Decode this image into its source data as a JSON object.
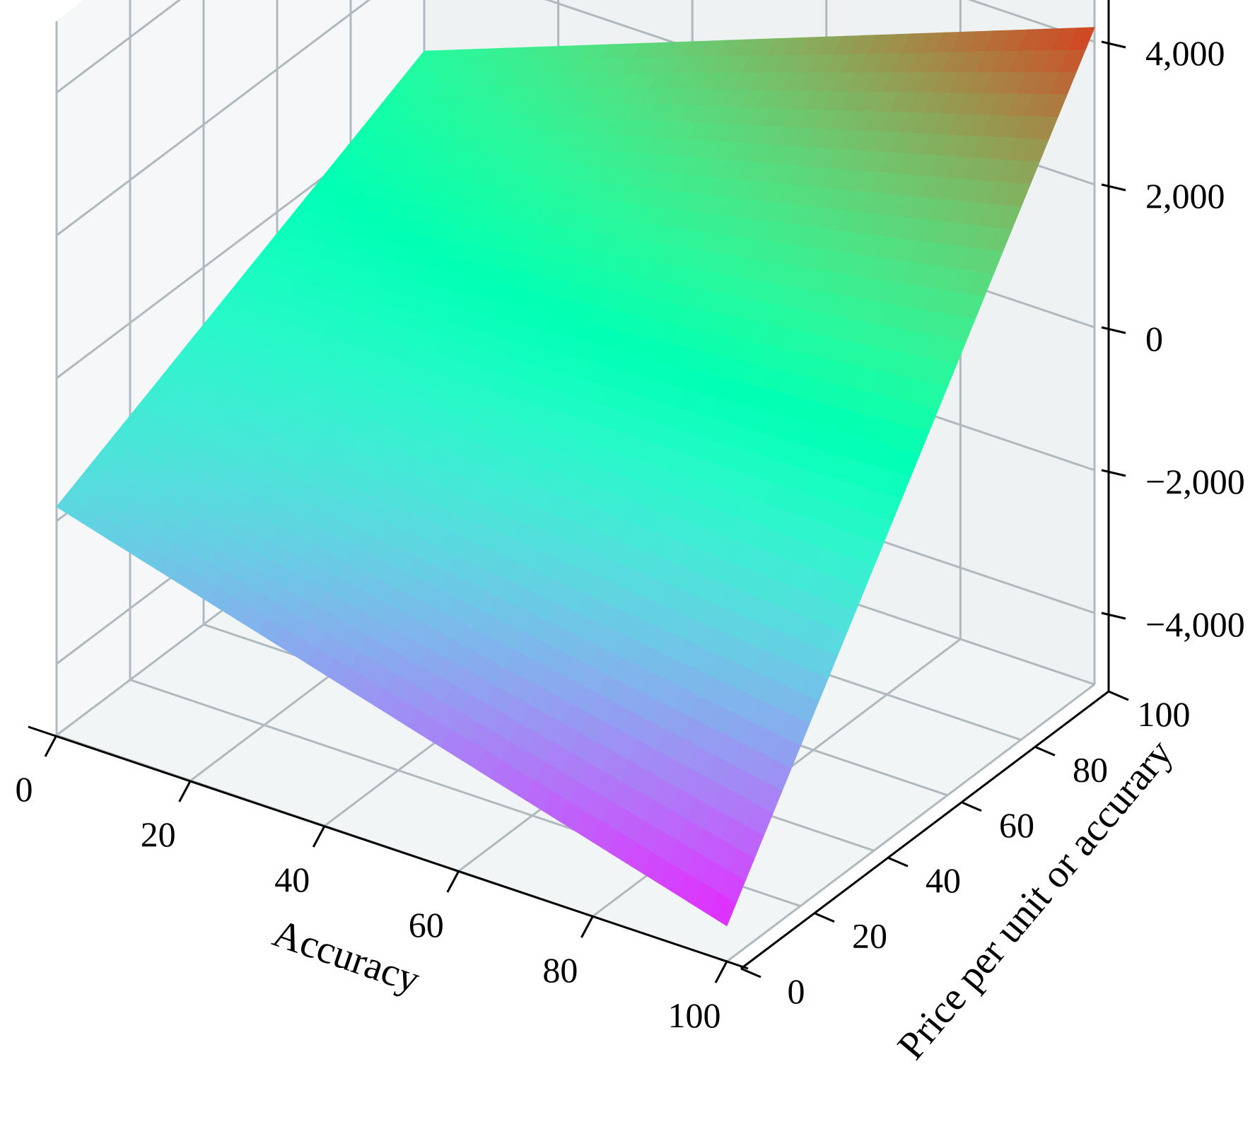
{
  "chart_data": {
    "type": "surface",
    "xlabel": "Accuracy",
    "ylabel": "Price per unit or accurary",
    "zlabel": "",
    "xlim": [
      0,
      100
    ],
    "ylim": [
      0,
      100
    ],
    "zlim": [
      -5000,
      5000
    ],
    "grid": true,
    "x_ticks": [
      0,
      20,
      40,
      60,
      80,
      100
    ],
    "y_ticks": [
      0,
      20,
      40,
      60,
      80,
      100
    ],
    "z_ticks": [
      -4000,
      -2000,
      0,
      2000,
      4000
    ],
    "x_tick_labels": [
      "0",
      "20",
      "40",
      "60",
      "80",
      "100"
    ],
    "y_tick_labels": [
      "0",
      "20",
      "40",
      "60",
      "80",
      "100"
    ],
    "z_tick_labels": [
      "−4,000",
      "−2,000",
      "0",
      "2,000",
      "4,000"
    ],
    "colormap": "rainbow",
    "surface_corners": [
      {
        "x": 0,
        "y": 0,
        "z": -1800
      },
      {
        "x": 0,
        "y": 100,
        "z": 700
      },
      {
        "x": 100,
        "y": 0,
        "z": -4500
      },
      {
        "x": 100,
        "y": 100,
        "z": 4200
      }
    ],
    "surface_peak": {
      "x": 100,
      "y": 100,
      "z": 4200
    },
    "surface_min": {
      "x": 100,
      "y": 0,
      "z": -4500
    }
  }
}
